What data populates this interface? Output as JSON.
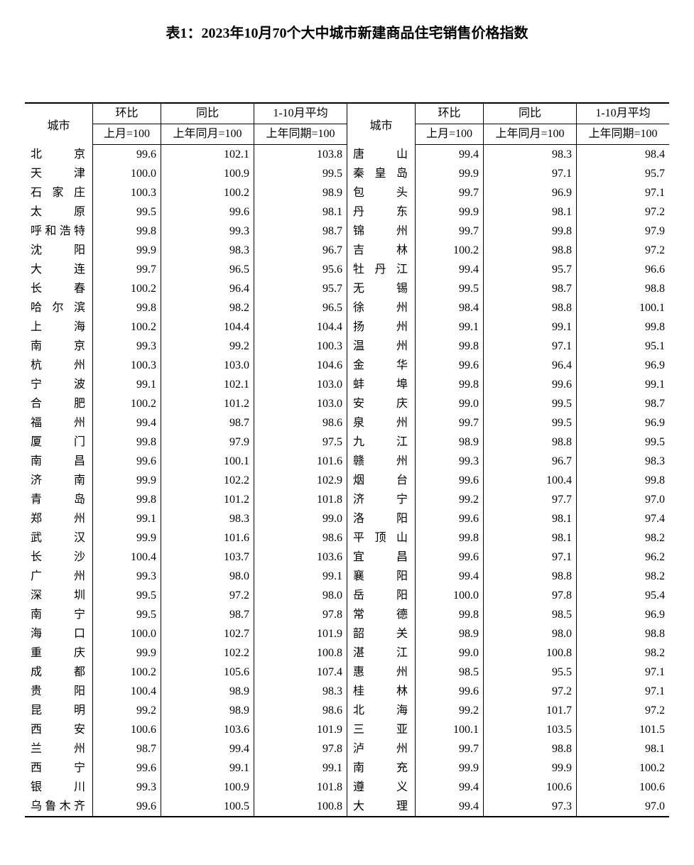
{
  "title": "表1：2023年10月70个大中城市新建商品住宅销售价格指数",
  "headers": {
    "city": "城市",
    "mom": "环比",
    "yoy": "同比",
    "avg": "1-10月平均",
    "mom_sub": "上月=100",
    "yoy_sub": "上年同月=100",
    "avg_sub": "上年同期=100"
  },
  "left": [
    {
      "city": "北京",
      "mom": "99.6",
      "yoy": "102.1",
      "avg": "103.8"
    },
    {
      "city": "天津",
      "mom": "100.0",
      "yoy": "100.9",
      "avg": "99.5"
    },
    {
      "city": "石家庄",
      "mom": "100.3",
      "yoy": "100.2",
      "avg": "98.9"
    },
    {
      "city": "太原",
      "mom": "99.5",
      "yoy": "99.6",
      "avg": "98.1"
    },
    {
      "city": "呼和浩特",
      "mom": "99.8",
      "yoy": "99.3",
      "avg": "98.7"
    },
    {
      "city": "沈阳",
      "mom": "99.9",
      "yoy": "98.3",
      "avg": "96.7"
    },
    {
      "city": "大连",
      "mom": "99.7",
      "yoy": "96.5",
      "avg": "95.6"
    },
    {
      "city": "长春",
      "mom": "100.2",
      "yoy": "96.4",
      "avg": "95.7"
    },
    {
      "city": "哈尔滨",
      "mom": "99.8",
      "yoy": "98.2",
      "avg": "96.5"
    },
    {
      "city": "上海",
      "mom": "100.2",
      "yoy": "104.4",
      "avg": "104.4"
    },
    {
      "city": "南京",
      "mom": "99.3",
      "yoy": "99.2",
      "avg": "100.3"
    },
    {
      "city": "杭州",
      "mom": "100.3",
      "yoy": "103.0",
      "avg": "104.6"
    },
    {
      "city": "宁波",
      "mom": "99.1",
      "yoy": "102.1",
      "avg": "103.0"
    },
    {
      "city": "合肥",
      "mom": "100.2",
      "yoy": "101.2",
      "avg": "103.0"
    },
    {
      "city": "福州",
      "mom": "99.4",
      "yoy": "98.7",
      "avg": "98.6"
    },
    {
      "city": "厦门",
      "mom": "99.8",
      "yoy": "97.9",
      "avg": "97.5"
    },
    {
      "city": "南昌",
      "mom": "99.6",
      "yoy": "100.1",
      "avg": "101.6"
    },
    {
      "city": "济南",
      "mom": "99.9",
      "yoy": "102.2",
      "avg": "102.9"
    },
    {
      "city": "青岛",
      "mom": "99.8",
      "yoy": "101.2",
      "avg": "101.8"
    },
    {
      "city": "郑州",
      "mom": "99.1",
      "yoy": "98.3",
      "avg": "99.0"
    },
    {
      "city": "武汉",
      "mom": "99.9",
      "yoy": "101.6",
      "avg": "98.6"
    },
    {
      "city": "长沙",
      "mom": "100.4",
      "yoy": "103.7",
      "avg": "103.6"
    },
    {
      "city": "广州",
      "mom": "99.3",
      "yoy": "98.0",
      "avg": "99.1"
    },
    {
      "city": "深圳",
      "mom": "99.5",
      "yoy": "97.2",
      "avg": "98.0"
    },
    {
      "city": "南宁",
      "mom": "99.5",
      "yoy": "98.7",
      "avg": "97.8"
    },
    {
      "city": "海口",
      "mom": "100.0",
      "yoy": "102.7",
      "avg": "101.9"
    },
    {
      "city": "重庆",
      "mom": "99.9",
      "yoy": "102.2",
      "avg": "100.8"
    },
    {
      "city": "成都",
      "mom": "100.2",
      "yoy": "105.6",
      "avg": "107.4"
    },
    {
      "city": "贵阳",
      "mom": "100.4",
      "yoy": "98.9",
      "avg": "98.3"
    },
    {
      "city": "昆明",
      "mom": "99.2",
      "yoy": "98.9",
      "avg": "98.6"
    },
    {
      "city": "西安",
      "mom": "100.6",
      "yoy": "103.6",
      "avg": "101.9"
    },
    {
      "city": "兰州",
      "mom": "98.7",
      "yoy": "99.4",
      "avg": "97.8"
    },
    {
      "city": "西宁",
      "mom": "99.6",
      "yoy": "99.1",
      "avg": "99.1"
    },
    {
      "city": "银川",
      "mom": "99.3",
      "yoy": "100.9",
      "avg": "101.8"
    },
    {
      "city": "乌鲁木齐",
      "mom": "99.6",
      "yoy": "100.5",
      "avg": "100.8"
    }
  ],
  "right": [
    {
      "city": "唐山",
      "mom": "99.4",
      "yoy": "98.3",
      "avg": "98.4"
    },
    {
      "city": "秦皇岛",
      "mom": "99.9",
      "yoy": "97.1",
      "avg": "95.7"
    },
    {
      "city": "包头",
      "mom": "99.7",
      "yoy": "96.9",
      "avg": "97.1"
    },
    {
      "city": "丹东",
      "mom": "99.9",
      "yoy": "98.1",
      "avg": "97.2"
    },
    {
      "city": "锦州",
      "mom": "99.7",
      "yoy": "99.8",
      "avg": "97.9"
    },
    {
      "city": "吉林",
      "mom": "100.2",
      "yoy": "98.8",
      "avg": "97.2"
    },
    {
      "city": "牡丹江",
      "mom": "99.4",
      "yoy": "95.7",
      "avg": "96.6"
    },
    {
      "city": "无锡",
      "mom": "99.5",
      "yoy": "98.7",
      "avg": "98.8"
    },
    {
      "city": "徐州",
      "mom": "98.4",
      "yoy": "98.8",
      "avg": "100.1"
    },
    {
      "city": "扬州",
      "mom": "99.1",
      "yoy": "99.1",
      "avg": "99.8"
    },
    {
      "city": "温州",
      "mom": "99.8",
      "yoy": "97.1",
      "avg": "95.1"
    },
    {
      "city": "金华",
      "mom": "99.6",
      "yoy": "96.4",
      "avg": "96.9"
    },
    {
      "city": "蚌埠",
      "mom": "99.8",
      "yoy": "99.6",
      "avg": "99.1"
    },
    {
      "city": "安庆",
      "mom": "99.0",
      "yoy": "99.5",
      "avg": "98.7"
    },
    {
      "city": "泉州",
      "mom": "99.7",
      "yoy": "99.5",
      "avg": "96.9"
    },
    {
      "city": "九江",
      "mom": "98.9",
      "yoy": "98.8",
      "avg": "99.5"
    },
    {
      "city": "赣州",
      "mom": "99.3",
      "yoy": "96.7",
      "avg": "98.3"
    },
    {
      "city": "烟台",
      "mom": "99.6",
      "yoy": "100.4",
      "avg": "99.8"
    },
    {
      "city": "济宁",
      "mom": "99.2",
      "yoy": "97.7",
      "avg": "97.0"
    },
    {
      "city": "洛阳",
      "mom": "99.6",
      "yoy": "98.1",
      "avg": "97.4"
    },
    {
      "city": "平顶山",
      "mom": "99.8",
      "yoy": "98.1",
      "avg": "98.2"
    },
    {
      "city": "宜昌",
      "mom": "99.6",
      "yoy": "97.1",
      "avg": "96.2"
    },
    {
      "city": "襄阳",
      "mom": "99.4",
      "yoy": "98.8",
      "avg": "98.2"
    },
    {
      "city": "岳阳",
      "mom": "100.0",
      "yoy": "97.8",
      "avg": "95.4"
    },
    {
      "city": "常德",
      "mom": "99.8",
      "yoy": "98.5",
      "avg": "96.9"
    },
    {
      "city": "韶关",
      "mom": "98.9",
      "yoy": "98.0",
      "avg": "98.8"
    },
    {
      "city": "湛江",
      "mom": "99.0",
      "yoy": "100.8",
      "avg": "98.2"
    },
    {
      "city": "惠州",
      "mom": "98.5",
      "yoy": "95.5",
      "avg": "97.1"
    },
    {
      "city": "桂林",
      "mom": "99.6",
      "yoy": "97.2",
      "avg": "97.1"
    },
    {
      "city": "北海",
      "mom": "99.2",
      "yoy": "101.7",
      "avg": "97.2"
    },
    {
      "city": "三亚",
      "mom": "100.1",
      "yoy": "103.5",
      "avg": "101.5"
    },
    {
      "city": "泸州",
      "mom": "99.7",
      "yoy": "98.8",
      "avg": "98.1"
    },
    {
      "city": "南充",
      "mom": "99.9",
      "yoy": "99.9",
      "avg": "100.2"
    },
    {
      "city": "遵义",
      "mom": "99.4",
      "yoy": "100.6",
      "avg": "100.6"
    },
    {
      "city": "大理",
      "mom": "99.4",
      "yoy": "97.3",
      "avg": "97.0"
    }
  ]
}
